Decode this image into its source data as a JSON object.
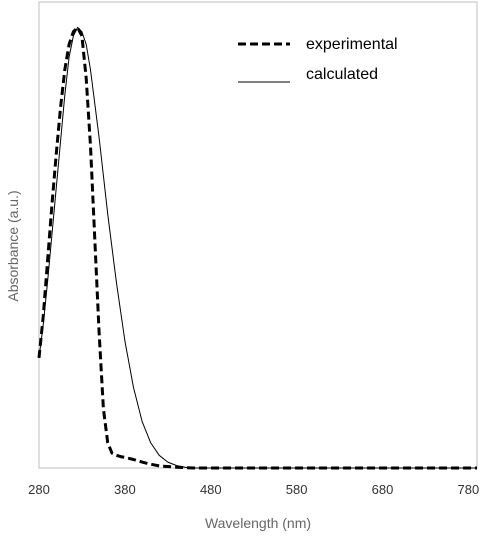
{
  "chart_data": {
    "type": "line",
    "title": "",
    "xlabel": "Wavelength (nm)",
    "ylabel": "Absorbance (a.u.)",
    "xlim": [
      280,
      790
    ],
    "ylim": [
      0,
      1.1
    ],
    "xticks": [
      "280",
      "380",
      "480",
      "580",
      "680",
      "780"
    ],
    "grid": false,
    "legend_position": "top-right",
    "series": [
      {
        "name": "experimental",
        "style": "dashed",
        "color": "#000000",
        "x": [
          280,
          285,
          290,
          295,
          300,
          305,
          310,
          315,
          320,
          325,
          330,
          335,
          340,
          345,
          350,
          355,
          360,
          365,
          370,
          375,
          380,
          390,
          400,
          410,
          420,
          440,
          460,
          480,
          580,
          680,
          790
        ],
        "y": [
          0.26,
          0.36,
          0.49,
          0.62,
          0.74,
          0.85,
          0.94,
          1.0,
          1.03,
          1.04,
          1.02,
          0.92,
          0.76,
          0.54,
          0.32,
          0.14,
          0.06,
          0.035,
          0.03,
          0.027,
          0.025,
          0.02,
          0.014,
          0.009,
          0.005,
          0.002,
          0.0,
          0.0,
          0.0,
          0.0,
          0.0
        ]
      },
      {
        "name": "calculated",
        "style": "solid",
        "color": "#000000",
        "x": [
          280,
          285,
          290,
          295,
          300,
          305,
          310,
          315,
          320,
          325,
          330,
          335,
          340,
          345,
          350,
          355,
          360,
          370,
          380,
          390,
          400,
          410,
          420,
          430,
          440,
          450,
          460,
          470,
          480,
          580,
          680,
          790
        ],
        "y": [
          0.26,
          0.34,
          0.44,
          0.55,
          0.66,
          0.77,
          0.88,
          0.97,
          1.02,
          1.04,
          1.03,
          1.0,
          0.94,
          0.86,
          0.78,
          0.69,
          0.6,
          0.44,
          0.3,
          0.19,
          0.11,
          0.06,
          0.03,
          0.014,
          0.006,
          0.002,
          0.0,
          0.0,
          0.0,
          0.0,
          0.0,
          0.0
        ]
      }
    ]
  }
}
